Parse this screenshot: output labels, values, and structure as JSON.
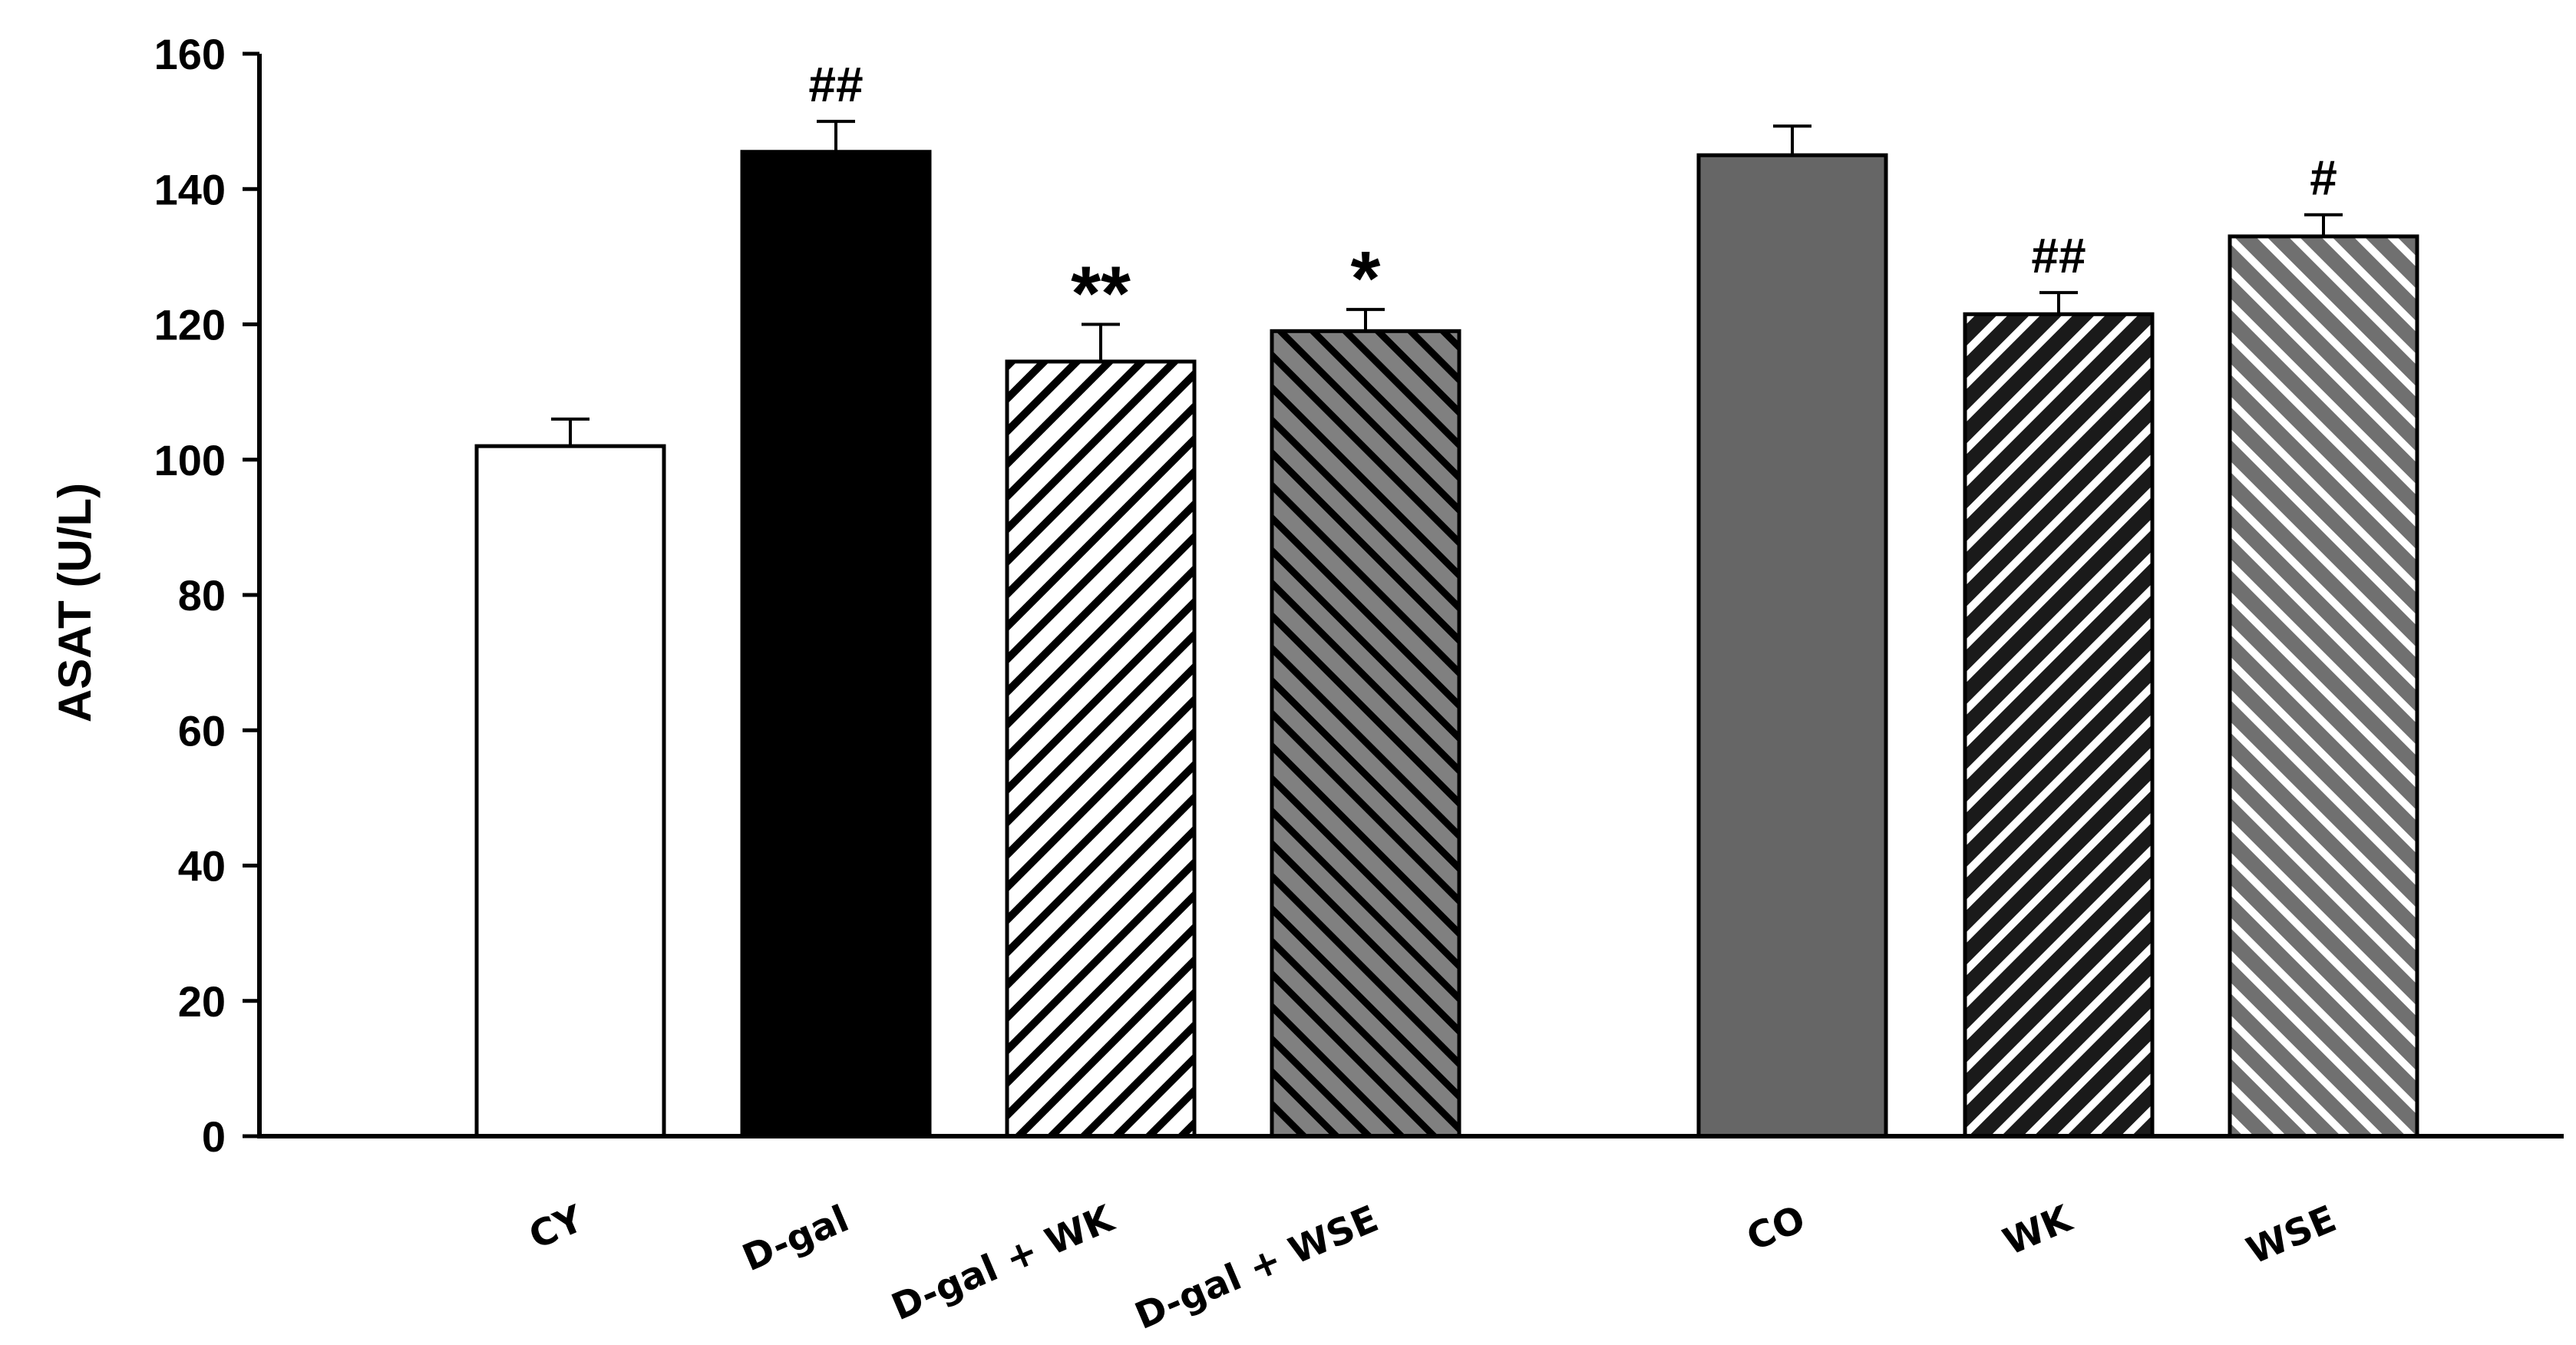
{
  "chart_data": {
    "type": "bar",
    "title": "",
    "xlabel": "",
    "ylabel": "ASAT (U/L)",
    "ylim": [
      0,
      160
    ],
    "yticks": [
      0,
      20,
      40,
      60,
      80,
      100,
      120,
      140,
      160
    ],
    "grid": false,
    "categories": [
      "CY",
      "D-gal",
      "D-gal + WK",
      "D-gal + WSE",
      "CO",
      "WK",
      "WSE"
    ],
    "values": [
      102,
      145.5,
      114.5,
      119,
      145,
      121.5,
      133
    ],
    "errors": [
      4,
      4.5,
      5.5,
      3.2,
      4.3,
      3.2,
      3.2
    ],
    "significance": [
      "",
      "##",
      "**",
      "*",
      "",
      "##",
      "#"
    ],
    "fills": [
      {
        "style": "solid",
        "color": "#ffffff"
      },
      {
        "style": "solid",
        "color": "#000000"
      },
      {
        "style": "hatch-forward",
        "background": "#ffffff",
        "stripe": "#000000"
      },
      {
        "style": "hatch-back",
        "background": "#808080",
        "stripe": "#000000"
      },
      {
        "style": "solid",
        "color": "#666666"
      },
      {
        "style": "hatch-forward",
        "background": "#1a1a1a",
        "stripe": "#ffffff"
      },
      {
        "style": "hatch-back",
        "background": "#707070",
        "stripe": "#ffffff"
      }
    ]
  }
}
